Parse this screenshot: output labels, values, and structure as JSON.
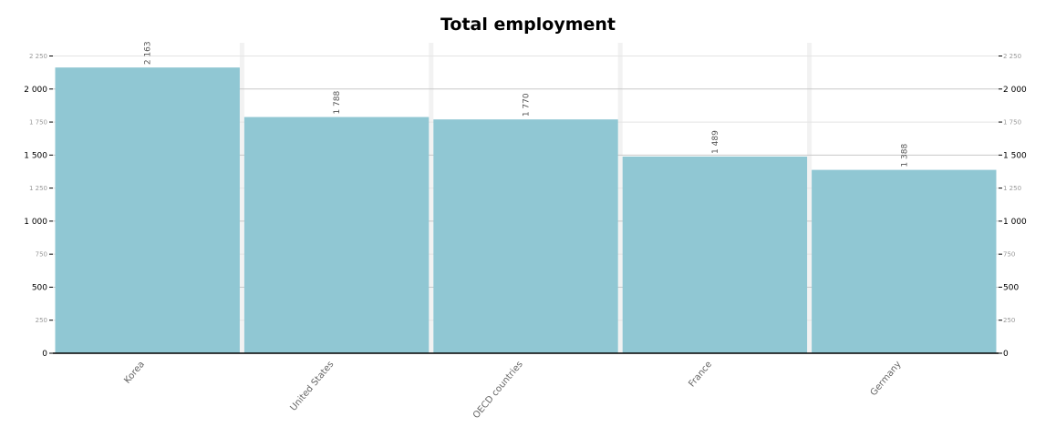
{
  "chart_data": {
    "type": "bar",
    "title": "Total employment",
    "categories": [
      "Korea",
      "United States",
      "OECD countries",
      "France",
      "Germany"
    ],
    "values": [
      2163,
      1788,
      1770,
      1489,
      1388
    ],
    "value_labels": [
      "2 163",
      "1 788",
      "1 770",
      "1 489",
      "1 388"
    ],
    "ylim": [
      0,
      2350
    ],
    "major_ticks": [
      {
        "value": 0,
        "label": "0"
      },
      {
        "value": 500,
        "label": "500"
      },
      {
        "value": 1000,
        "label": "1 000"
      },
      {
        "value": 1500,
        "label": "1 500"
      },
      {
        "value": 2000,
        "label": "2 000"
      }
    ],
    "minor_ticks": [
      {
        "value": 250,
        "label": "250"
      },
      {
        "value": 750,
        "label": "750"
      },
      {
        "value": 1250,
        "label": "1 250"
      },
      {
        "value": 1750,
        "label": "1 750"
      },
      {
        "value": 2250,
        "label": "2 250"
      }
    ],
    "y_axis_both_sides": true,
    "grid": true,
    "bar_color": "#90c7d3",
    "axis_color": "#000000",
    "major_grid_color": "#c8c8c8",
    "minor_grid_color": "#e4e4e4"
  }
}
